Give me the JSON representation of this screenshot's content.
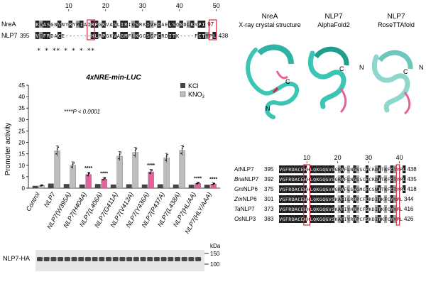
{
  "alignment_top": {
    "ticks": [
      "10",
      "20",
      "30",
      "40",
      "50"
    ],
    "rows": [
      {
        "name": "NreA",
        "start": "",
        "seq": "KVASGNVNYRYMIAIRPGKVAGLIRIGSRKIVEDAELSQNDLKYPI",
        "end": "97"
      },
      {
        "name": "NLP7",
        "start": "395",
        "seq": "VGFRDACE-------HLRPGKVAGMFLKGGSCFCRDITK----FCTYPL",
        "end": "438"
      }
    ],
    "stars": "*       *   **     *      *    *     **"
  },
  "structures": {
    "panels": [
      {
        "title": "NreA",
        "subtitle": "X-ray crystal structure",
        "labels": [
          "C",
          "N"
        ]
      },
      {
        "title": "NLP7",
        "subtitle": "AlphaFold2",
        "labels": [
          "C",
          "N"
        ]
      },
      {
        "title": "NLP7",
        "subtitle": "RoseTTAfold",
        "labels": [
          "C",
          "N"
        ]
      }
    ]
  },
  "chart_data": {
    "type": "bar",
    "title": "4xNRE-min-LUC",
    "annotation": "****P < 0.0001",
    "ylabel": "Promoter activity",
    "ylim": [
      0,
      45
    ],
    "yticks": [
      0,
      5,
      10,
      15,
      20,
      25,
      30,
      35,
      40,
      45
    ],
    "categories": [
      "Control",
      "NLP7",
      "NLP7(W395A)",
      "NLP7(H404A)",
      "NLP7(L406A)",
      "NLP7(G411A)",
      "NLP7(V412A)",
      "NLP7(Y436A)",
      "NLP7(P437A)",
      "NLP7(L438A)",
      "NLP7(HL/AA)",
      "NLP7(HLY/AAA)"
    ],
    "series": [
      {
        "name": "KCl",
        "color": "#444444",
        "values": [
          1.0,
          2.0,
          1.8,
          1.6,
          1.8,
          1.6,
          1.7,
          1.6,
          1.7,
          1.6,
          1.5,
          1.5
        ]
      },
      {
        "name": "KNO3",
        "color": "#bdbdbd",
        "values": [
          1.1,
          16.3,
          10.0,
          6.0,
          4.0,
          14.0,
          15.6,
          7.1,
          13.3,
          16.5,
          2.1,
          1.8
        ]
      }
    ],
    "highlight_color": "#e8609b",
    "highlighted_knO3_indices": [
      3,
      4,
      7,
      10,
      11
    ],
    "significance": [
      {
        "category_index": 3,
        "text": "****"
      },
      {
        "category_index": 4,
        "text": "****"
      },
      {
        "category_index": 7,
        "text": "****"
      },
      {
        "category_index": 10,
        "text": "****"
      },
      {
        "category_index": 11,
        "text": "****"
      }
    ],
    "legend": {
      "kcl": "KCl",
      "kno3_main": "KNO",
      "kno3_sub": "3"
    }
  },
  "western": {
    "label": "NLP7-HA",
    "unit": "kDa",
    "markers": [
      "150",
      "100"
    ]
  },
  "alignment_bottom": {
    "ticks": [
      "10",
      "20",
      "30",
      "40"
    ],
    "rows": [
      {
        "italic": "At",
        "rest": "NLP7",
        "start": "395",
        "seq": "VGFRDACEHHLQKGQGVSGRAFLNGSSCFCRDITKFCTYPL",
        "end": "438"
      },
      {
        "italic": "Bna",
        "rest": "NLP7",
        "start": "392",
        "seq": "VGFRDACEHHLQKGQGVSGRAFLNGSSCFCRDITKFCTYPL",
        "end": "435"
      },
      {
        "italic": "Gm",
        "rest": "NLP6",
        "start": "375",
        "seq": "VGFRDACEHHLQKGQGVAGRAFLSHGMCFCSNITKFCTYPL",
        "end": "418"
      },
      {
        "italic": "Zm",
        "rest": "NLP6",
        "start": "301",
        "seq": "VGFRDACEHHLQKGQGVSKAFILRRPCFCRDITKFCYYPL",
        "end": "344"
      },
      {
        "italic": "Ta",
        "rest": "NLP7",
        "start": "373",
        "seq": "VGFRDACEHHLQKGQGVSKAFIYHRPCFSKDITKFCYYPL",
        "end": "416"
      },
      {
        "italic": "Os",
        "rest": "NLP3",
        "start": "383",
        "seq": "VGFRDACEHHLQKGQGVSKAFIYRRPCFSKDITKFCYYPL",
        "end": "426"
      }
    ]
  }
}
